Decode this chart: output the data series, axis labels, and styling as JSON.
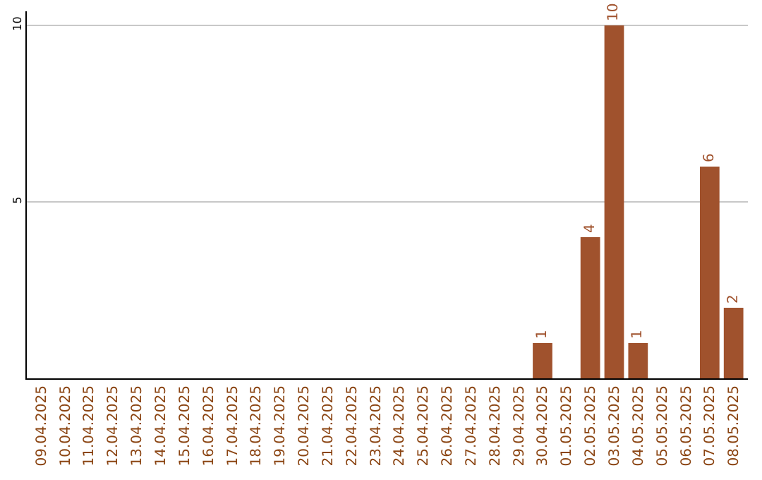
{
  "chart_data": {
    "type": "bar",
    "categories": [
      "09.04.2025",
      "10.04.2025",
      "11.04.2025",
      "12.04.2025",
      "13.04.2025",
      "14.04.2025",
      "15.04.2025",
      "16.04.2025",
      "17.04.2025",
      "18.04.2025",
      "19.04.2025",
      "20.04.2025",
      "21.04.2025",
      "22.04.2025",
      "23.04.2025",
      "24.04.2025",
      "25.04.2025",
      "26.04.2025",
      "27.04.2025",
      "28.04.2025",
      "29.04.2025",
      "30.04.2025",
      "01.05.2025",
      "02.05.2025",
      "03.05.2025",
      "04.05.2025",
      "05.05.2025",
      "06.05.2025",
      "07.05.2025",
      "08.05.2025"
    ],
    "values": [
      0,
      0,
      0,
      0,
      0,
      0,
      0,
      0,
      0,
      0,
      0,
      0,
      0,
      0,
      0,
      0,
      0,
      0,
      0,
      0,
      0,
      1,
      0,
      4,
      10,
      1,
      0,
      0,
      6,
      2
    ],
    "value_labels": [
      null,
      null,
      null,
      null,
      null,
      null,
      null,
      null,
      null,
      null,
      null,
      null,
      null,
      null,
      null,
      null,
      null,
      null,
      null,
      null,
      null,
      "1",
      null,
      "4",
      "10",
      "1",
      null,
      null,
      "6",
      "2"
    ],
    "color": "#a0522d",
    "ylim": [
      0,
      10.4
    ],
    "yticks": [
      5,
      10
    ],
    "grid": "y"
  }
}
